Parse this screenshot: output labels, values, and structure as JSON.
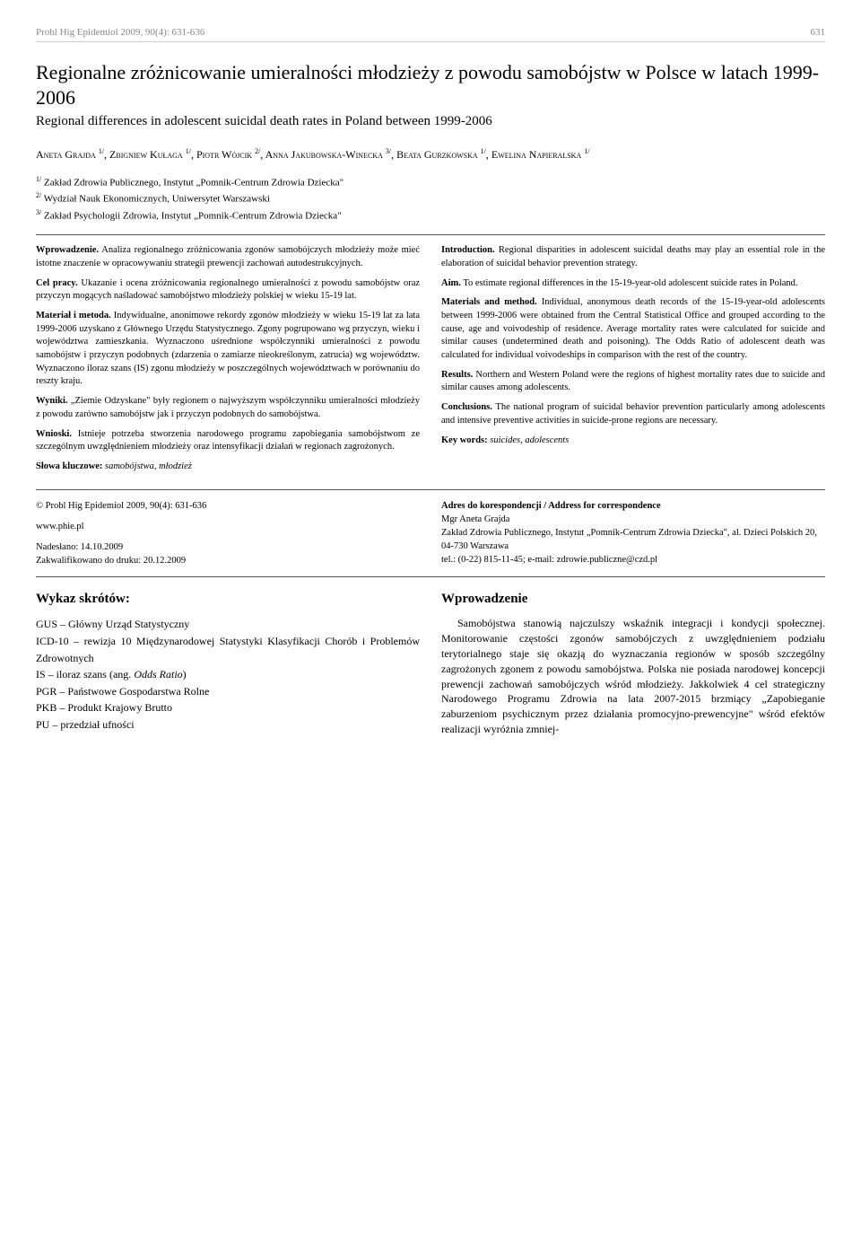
{
  "header": {
    "journal": "Probl Hig Epidemiol  2009, 90(4): 631-636",
    "pageno": "631"
  },
  "title_pl": "Regionalne zróżnicowanie umieralności młodzieży z powodu samobójstw w Polsce w latach 1999-2006",
  "title_en": "Regional differences in adolescent suicidal death rates in Poland between 1999-2006",
  "authors_html": "Aneta Grajda <sup>1/</sup>, Zbigniew Kułaga <sup>1/</sup>, Piotr Wójcik <sup>2/</sup>, Anna Jakubowska-Winecka <sup>3/</sup>, Beata Gurzkowska <sup>1/</sup>, Ewelina Napieralska <sup>1/</sup>",
  "affiliations": [
    "1/ Zakład Zdrowia Publicznego, Instytut „Pomnik-Centrum Zdrowia Dziecka\"",
    "2/ Wydział Nauk Ekonomicznych, Uniwersytet Warszawski",
    "3/ Zakład Psychologii Zdrowia, Instytut „Pomnik-Centrum Zdrowia Dziecka\""
  ],
  "abstract_pl": {
    "intro_label": "Wprowadzenie.",
    "intro": "Analiza regionalnego zróżnicowania zgonów samobójczych młodzieży może mieć istotne znaczenie w opracowywaniu strategii prewencji zachowań autodestrukcyjnych.",
    "aim_label": "Cel pracy.",
    "aim": "Ukazanie i ocena zróżnicowania regionalnego umieralności z powodu samobójstw oraz przyczyn mogących naśladować samobójstwo młodzieży polskiej w wieku 15-19 lat.",
    "mat_label": "Materiał i metoda.",
    "mat": "Indywidualne, anonimowe rekordy zgonów młodzieży w wieku 15-19 lat za lata 1999-2006 uzyskano z Głównego Urzędu Statystycznego. Zgony pogrupowano wg przyczyn, wieku i województwa zamieszkania. Wyznaczono uśrednione współczynniki umieralności z powodu samobójstw i przyczyn podobnych (zdarzenia o zamiarze nieokreślonym, zatrucia) wg województw. Wyznaczono iloraz szans (IS) zgonu młodzieży w poszczególnych województwach w porównaniu do reszty kraju.",
    "res_label": "Wyniki.",
    "res": "„Ziemie Odzyskane\" były regionem o najwyższym współczynniku umieralności młodzieży z powodu zarówno samobójstw jak i przyczyn podobnych do samobójstwa.",
    "con_label": "Wnioski.",
    "con": "Istnieje potrzeba stworzenia narodowego programu zapobiegania samobójstwom ze szczególnym uwzględnieniem młodzieży oraz intensyfikacji działań w regionach zagrożonych.",
    "kw_label": "Słowa kluczowe:",
    "kw": "samobójstwa, młodzież"
  },
  "abstract_en": {
    "intro_label": "Introduction.",
    "intro": "Regional disparities in adolescent suicidal deaths may play an essential role in the elaboration of suicidal behavior prevention strategy.",
    "aim_label": "Aim.",
    "aim": "To estimate regional differences in the 15-19-year-old adolescent suicide rates in Poland.",
    "mat_label": "Materials and method.",
    "mat": "Individual, anonymous death records of the 15-19-year-old adolescents between 1999-2006 were obtained from the Central Statistical Office and grouped according to the cause, age and voivodeship of residence. Average mortality rates were calculated for suicide and similar causes (undetermined death and poisoning). The Odds Ratio of adolescent death was calculated for individual voivodeships in comparison with the rest of the country.",
    "res_label": "Results.",
    "res": "Northern and Western Poland were the regions of highest mortality rates due to suicide and similar causes among adolescents.",
    "con_label": "Conclusions.",
    "con": "The national program of suicidal behavior prevention particularly among adolescents and intensive preventive activities in suicide-prone regions are necessary.",
    "kw_label": "Key words:",
    "kw": "suicides, adolescents"
  },
  "meta": {
    "cite": "© Probl Hig Epidemiol  2009, 90(4): 631-636",
    "www": "www.phie.pl",
    "received": "Nadesłano: 14.10.2009",
    "accepted": "Zakwalifikowano do druku: 20.12.2009",
    "corr_label": "Adres do korespondencji / Address for correspondence",
    "corr_name": "Mgr Aneta Grajda",
    "corr_inst": "Zakład Zdrowia Publicznego, Instytut „Pomnik-Centrum Zdrowia Dziecka\", al. Dzieci Polskich 20, 04-730 Warszawa",
    "corr_tel": "tel.: (0-22) 815-11-45;  e-mail: zdrowie.publiczne@czd.pl"
  },
  "abbrev": {
    "heading": "Wykaz skrótów:",
    "items": [
      "GUS – Główny Urząd Statystyczny",
      "ICD-10 – rewizja 10 Międzynarodowej Statystyki Klasyfikacji Chorób i Problemów Zdrowotnych",
      "IS – iloraz szans (ang. Odds Ratio)",
      "PGR – Państwowe Gospodarstwa Rolne",
      "PKB – Produkt Krajowy Brutto",
      "PU – przedział ufności"
    ]
  },
  "intro_section": {
    "heading": "Wprowadzenie",
    "body": "Samobójstwa stanowią najczulszy wskaźnik integracji i kondycji społecznej. Monitorowanie częstości zgonów samobójczych z uwzględnieniem podziału terytorialnego staje się okazją do wyznaczania regionów w sposób szczególny zagrożonych zgonem z powodu samobójstwa. Polska nie posiada narodowej koncepcji prewencji zachowań samobójczych wśród młodzieży. Jakkolwiek 4 cel strategiczny Narodowego Programu Zdrowia na lata 2007-2015 brzmiący „Zapobieganie zaburzeniom psychicznym przez działania promocyjno-prewencyjne\" wśród efektów realizacji wyróżnia zmniej-"
  }
}
